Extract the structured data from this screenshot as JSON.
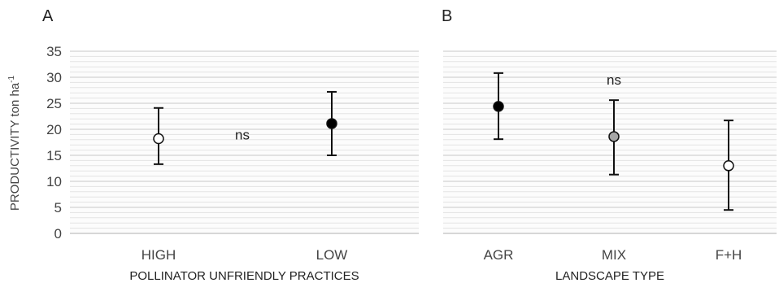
{
  "ylabel_main": "PRODUCTIVITY  ton ha",
  "ylabel_sup": "-1",
  "chart_data": [
    {
      "type": "scatter",
      "panel": "A",
      "xlabel": "POLLINATOR  UNFRIENDLY  PRACTICES",
      "ylim": [
        0,
        35
      ],
      "yticks": [
        "0",
        "5",
        "10",
        "15",
        "20",
        "25",
        "30",
        "35"
      ],
      "grid": true,
      "categories": [
        "HIGH",
        "LOW"
      ],
      "values": [
        18.2,
        21.1
      ],
      "lower": [
        13.3,
        15.0
      ],
      "upper": [
        24.1,
        27.2
      ],
      "marker_fill": [
        "#ffffff",
        "#000000"
      ],
      "annotations": [
        {
          "text": "ns"
        }
      ]
    },
    {
      "type": "scatter",
      "panel": "B",
      "xlabel": "LANDSCAPE  TYPE",
      "ylim": [
        0,
        35
      ],
      "grid": true,
      "categories": [
        "AGR",
        "MIX",
        "F+H"
      ],
      "values": [
        24.4,
        18.6,
        13.0
      ],
      "lower": [
        18.1,
        11.3,
        4.5
      ],
      "upper": [
        30.8,
        25.6,
        21.7
      ],
      "marker_fill": [
        "#000000",
        "#a6a6a6",
        "#ffffff"
      ],
      "annotations": [
        {
          "text": "ns"
        }
      ]
    }
  ]
}
